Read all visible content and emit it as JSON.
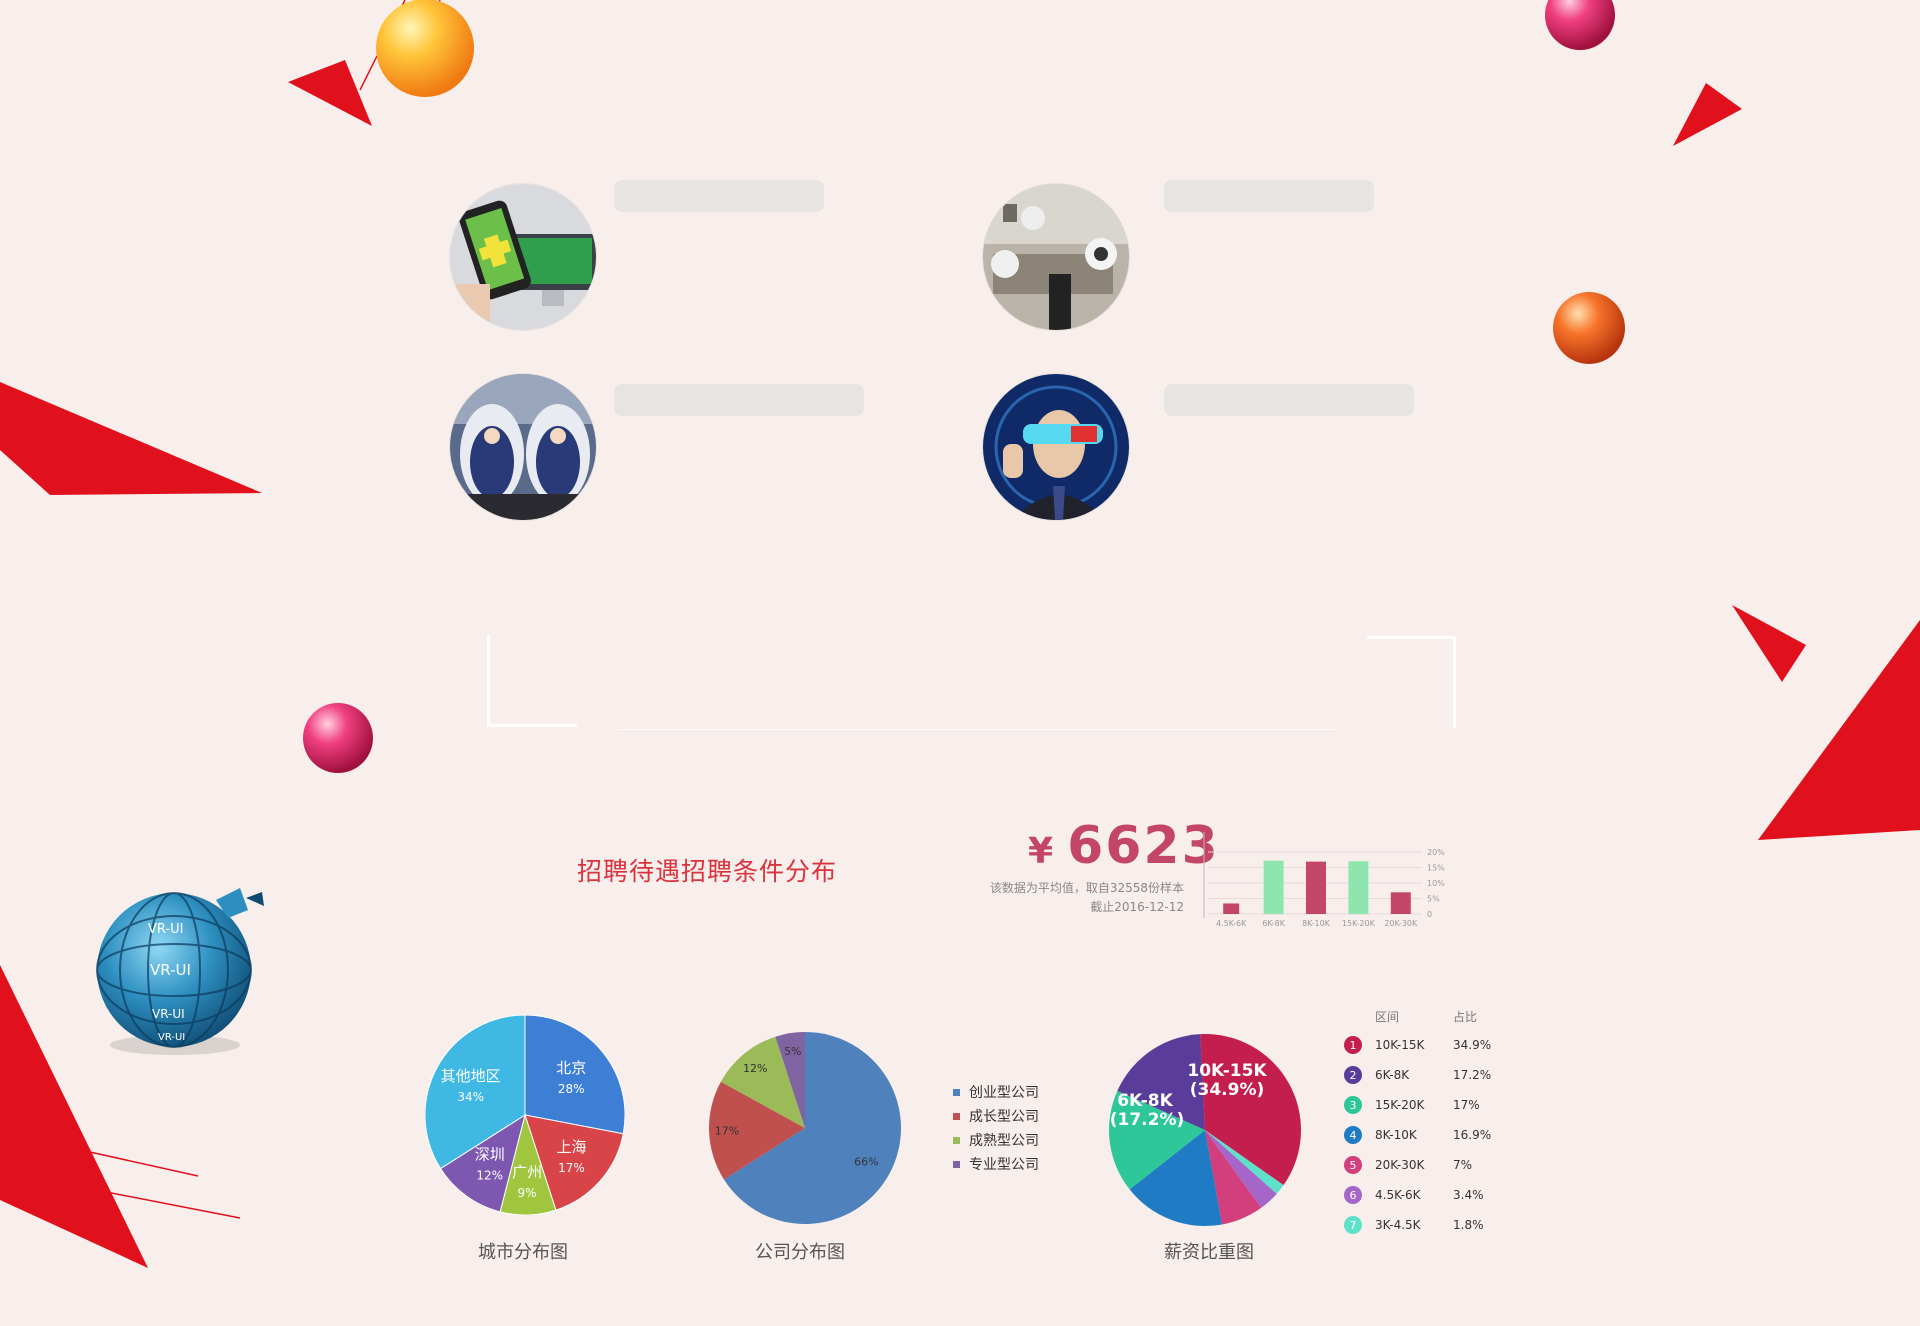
{
  "colors": {
    "background": "#f8efec",
    "accent_red": "#e0101c",
    "salary_red": "#c4456a",
    "placeholder": "#e8e4e2"
  },
  "decor": {
    "globe_labels": [
      "VR-UI",
      "VR-UI",
      "VR-UI",
      "VR-UI"
    ]
  },
  "cards": [
    {
      "icon": "mobile-pc-photo-icon"
    },
    {
      "icon": "smart-home-photo-icon"
    },
    {
      "icon": "vr-seats-photo-icon"
    },
    {
      "icon": "vr-headset-man-photo-icon"
    }
  ],
  "section": {
    "title": "招聘待遇招聘条件分布"
  },
  "salary_summary": {
    "currency": "¥",
    "average": "6623",
    "note_line1": "该数据为平均值，取自32558份样本",
    "note_line2": "截止2016-12-12"
  },
  "chart_data": [
    {
      "type": "bar",
      "categories": [
        "4.5K-6K",
        "6K-8K",
        "8K-10K",
        "15K-20K",
        "20K-30K"
      ],
      "values": [
        3.4,
        17.2,
        16.9,
        17,
        7
      ],
      "ylim": [
        0,
        20
      ],
      "yticks": [
        "20%",
        "15%",
        "10%",
        "5%",
        "0"
      ],
      "colors": [
        "#c4456a",
        "#8ee6ae",
        "#c4456a",
        "#8ee6ae",
        "#c4456a"
      ]
    },
    {
      "type": "pie",
      "caption": "城市分布图",
      "slices": [
        {
          "label": "北京",
          "value": 28,
          "display": "28%",
          "color": "#3e7fd6"
        },
        {
          "label": "上海",
          "value": 17,
          "display": "17%",
          "color": "#d84448"
        },
        {
          "label": "广州",
          "value": 9,
          "display": "9%",
          "color": "#9fc63e"
        },
        {
          "label": "深圳",
          "value": 12,
          "display": "12%",
          "color": "#7d57b0"
        },
        {
          "label": "其他地区",
          "value": 34,
          "display": "34%",
          "color": "#3fb9e3"
        }
      ]
    },
    {
      "type": "pie",
      "caption": "公司分布图",
      "slices": [
        {
          "label": "创业型公司",
          "value": 66,
          "display": "66%",
          "color": "#4f81bd"
        },
        {
          "label": "成长型公司",
          "value": 17,
          "display": "17%",
          "color": "#c0504d"
        },
        {
          "label": "成熟型公司",
          "value": 12,
          "display": "12%",
          "color": "#9bbb59"
        },
        {
          "label": "专业型公司",
          "value": 5,
          "display": "5%",
          "color": "#8064a2"
        }
      ]
    },
    {
      "type": "pie",
      "caption": "薪资比重图",
      "table_headers": [
        "区间",
        "占比"
      ],
      "slices": [
        {
          "rank": "1",
          "label": "10K-15K",
          "value": 34.9,
          "display": "34.9%",
          "color": "#c41e4f"
        },
        {
          "rank": "2",
          "label": "6K-8K",
          "value": 17.2,
          "display": "17.2%",
          "color": "#5a3c9a"
        },
        {
          "rank": "3",
          "label": "15K-20K",
          "value": 17,
          "display": "17%",
          "color": "#2dc79a"
        },
        {
          "rank": "4",
          "label": "8K-10K",
          "value": 16.9,
          "display": "16.9%",
          "color": "#1f7bc4"
        },
        {
          "rank": "5",
          "label": "20K-30K",
          "value": 7,
          "display": "7%",
          "color": "#d23f7c"
        },
        {
          "rank": "6",
          "label": "4.5K-6K",
          "value": 3.4,
          "display": "3.4%",
          "color": "#a565c9"
        },
        {
          "rank": "7",
          "label": "3K-4.5K",
          "value": 1.8,
          "display": "1.8%",
          "color": "#5fe0c8"
        }
      ],
      "inner_labels": [
        {
          "name": "10K-15K",
          "value": "(34.9%)"
        },
        {
          "name": "6K-8K",
          "value": "(17.2%)"
        }
      ]
    }
  ]
}
